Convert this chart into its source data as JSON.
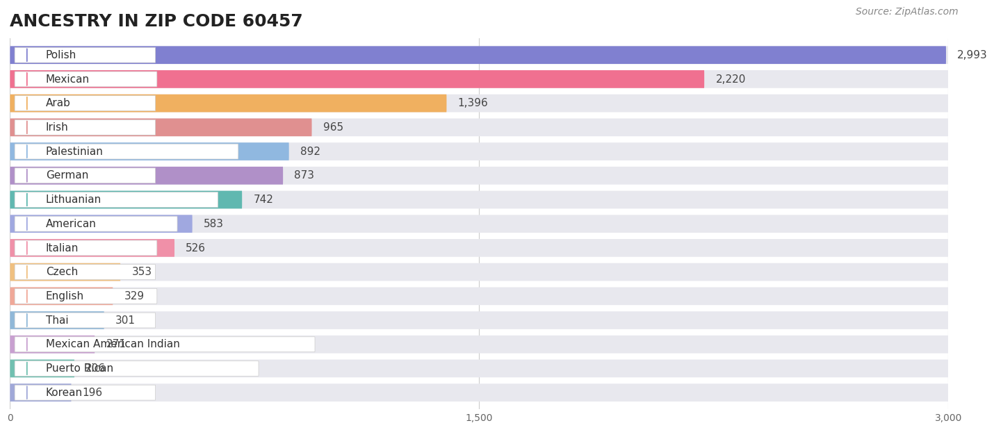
{
  "title": "ANCESTRY IN ZIP CODE 60457",
  "source": "Source: ZipAtlas.com",
  "categories": [
    "Polish",
    "Mexican",
    "Arab",
    "Irish",
    "Palestinian",
    "German",
    "Lithuanian",
    "American",
    "Italian",
    "Czech",
    "English",
    "Thai",
    "Mexican American Indian",
    "Puerto Rican",
    "Korean"
  ],
  "values": [
    2993,
    2220,
    1396,
    965,
    892,
    873,
    742,
    583,
    526,
    353,
    329,
    301,
    271,
    206,
    196
  ],
  "bar_colors": [
    "#8080d0",
    "#f07090",
    "#f0b060",
    "#e09090",
    "#90b8e0",
    "#b090c8",
    "#60b8b0",
    "#a0a8e0",
    "#f090a8",
    "#f0c080",
    "#f0a898",
    "#90b8d8",
    "#c8a0d0",
    "#70c0b0",
    "#a0a8d8"
  ],
  "xlim": [
    0,
    3000
  ],
  "xticks": [
    0,
    1500,
    3000
  ],
  "background_color": "#ffffff",
  "bar_bg_color": "#f0f0f0",
  "title_fontsize": 18,
  "label_fontsize": 11,
  "value_fontsize": 11,
  "source_fontsize": 10
}
